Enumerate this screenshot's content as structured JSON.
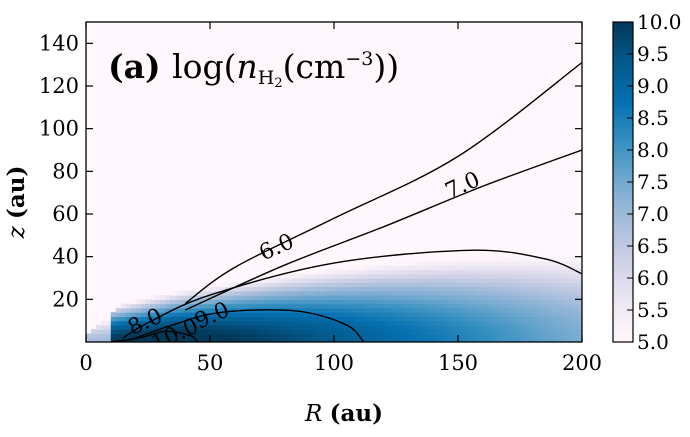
{
  "chart_data": {
    "type": "heatmap",
    "panel_tag": "(a)",
    "title": "log(n_H2(cm^-3))",
    "xlabel_var": "R",
    "xlabel_unit": "(au)",
    "ylabel_var": "z",
    "ylabel_unit": "(au)",
    "xlim": [
      0,
      200
    ],
    "ylim": [
      0,
      150
    ],
    "xticks": [
      0,
      50,
      100,
      150,
      200
    ],
    "yticks": [
      20,
      40,
      60,
      80,
      100,
      120,
      140
    ],
    "colorbar": {
      "range": [
        5.0,
        10.0
      ],
      "ticks": [
        "5.0",
        "5.5",
        "6.0",
        "6.5",
        "7.0",
        "7.5",
        "8.0",
        "8.5",
        "9.0",
        "9.5",
        "10.0"
      ],
      "colormap": [
        "#fff7fb",
        "#ece7f2",
        "#d0d1e6",
        "#a6bddb",
        "#74a9cf",
        "#3690c0",
        "#0570b0",
        "#045a8d",
        "#023858"
      ]
    },
    "contours": [
      {
        "level": "6.0",
        "points": [
          [
            40,
            18
          ],
          [
            60,
            35
          ],
          [
            100,
            58
          ],
          [
            150,
            87
          ],
          [
            200,
            131
          ]
        ]
      },
      {
        "level": "7.0",
        "points": [
          [
            40,
            15
          ],
          [
            80,
            36
          ],
          [
            120,
            54
          ],
          [
            160,
            73
          ],
          [
            200,
            90
          ]
        ]
      },
      {
        "level": "8.0",
        "points": [
          [
            15,
            2
          ],
          [
            25,
            9
          ],
          [
            50,
            22
          ],
          [
            100,
            37
          ],
          [
            155,
            43
          ],
          [
            185,
            39
          ],
          [
            200,
            32
          ]
        ]
      },
      {
        "level": "9.0",
        "points": [
          [
            18,
            1
          ],
          [
            35,
            8
          ],
          [
            55,
            14
          ],
          [
            85,
            14.5
          ],
          [
            105,
            8
          ],
          [
            112,
            0
          ]
        ]
      },
      {
        "level": "10.0",
        "points": [
          [
            10,
            0
          ],
          [
            22,
            2
          ],
          [
            32,
            5
          ],
          [
            42,
            3
          ],
          [
            45,
            0
          ]
        ]
      }
    ]
  }
}
